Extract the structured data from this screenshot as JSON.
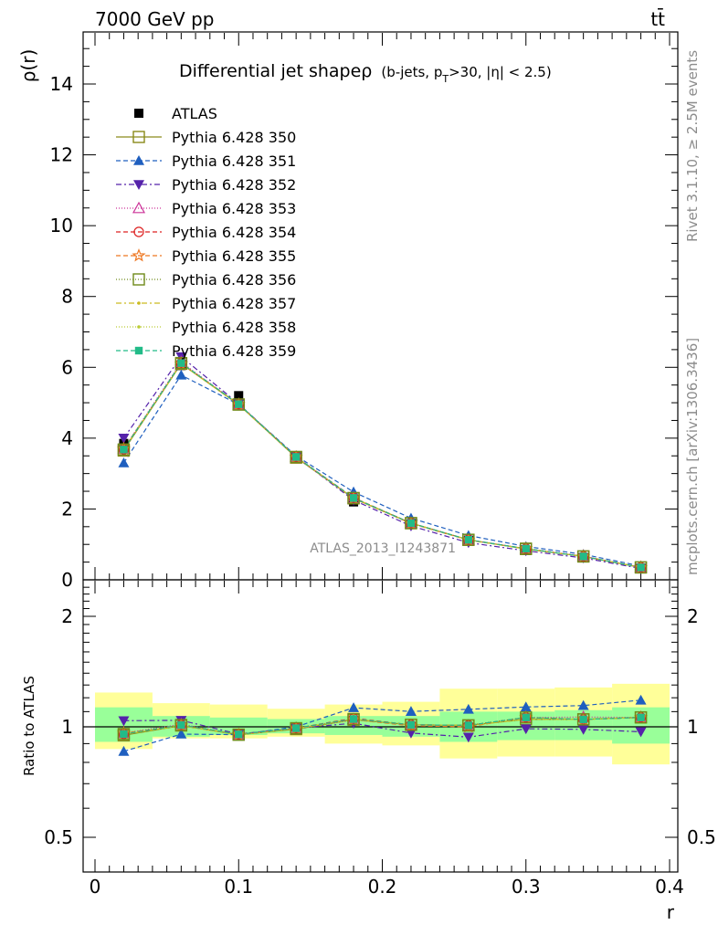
{
  "header": {
    "left": "7000 GeV pp",
    "right": "tt̄"
  },
  "side_texts": {
    "rivet": "Rivet 3.1.10, ≥ 2.5M events",
    "mcplots": "mcplots.cern.ch [arXiv:1306.3436]"
  },
  "main_panel": {
    "title_main": "Differential jet shapeρ",
    "title_sub": "(b-jets, p",
    "title_sub_T": "T",
    "title_sub_rest": ">30, |η| < 2.5)",
    "ylabel": "ρ(r)",
    "watermark": "ATLAS_2013_I1243871",
    "y_ticks": [
      "0",
      "2",
      "4",
      "6",
      "8",
      "10",
      "12",
      "14"
    ]
  },
  "ratio_panel": {
    "ylabel": "Ratio to ATLAS",
    "y_ticks": [
      "0.5",
      "1",
      "2"
    ],
    "x_ticks": [
      "0",
      "0.1",
      "0.2",
      "0.3",
      "0.4"
    ],
    "xlabel": "r"
  },
  "chart_data": {
    "type": "line",
    "x": [
      0.02,
      0.06,
      0.1,
      0.14,
      0.18,
      0.22,
      0.26,
      0.3,
      0.34,
      0.38
    ],
    "bin_edges": [
      0,
      0.04,
      0.08,
      0.12,
      0.16,
      0.2,
      0.24,
      0.28,
      0.32,
      0.36,
      0.4
    ],
    "xlim": [
      -0.01,
      0.405
    ],
    "ylim": [
      0,
      15.5
    ],
    "ratio_ylim": [
      0.4,
      2.5
    ],
    "data": {
      "name": "ATLAS",
      "values": [
        3.85,
        6.05,
        5.2,
        3.5,
        2.2,
        1.58,
        1.12,
        0.83,
        0.63,
        0.33
      ]
    },
    "band_green": [
      [
        0.91,
        1.13
      ],
      [
        0.94,
        1.07
      ],
      [
        0.95,
        1.06
      ],
      [
        0.96,
        1.05
      ],
      [
        0.95,
        1.07
      ],
      [
        0.94,
        1.07
      ],
      [
        0.91,
        1.1
      ],
      [
        0.92,
        1.1
      ],
      [
        0.92,
        1.11
      ],
      [
        0.9,
        1.13
      ]
    ],
    "band_yellow": [
      [
        0.87,
        1.24
      ],
      [
        0.93,
        1.16
      ],
      [
        0.93,
        1.15
      ],
      [
        0.94,
        1.12
      ],
      [
        0.9,
        1.15
      ],
      [
        0.89,
        1.17
      ],
      [
        0.82,
        1.27
      ],
      [
        0.83,
        1.27
      ],
      [
        0.83,
        1.28
      ],
      [
        0.79,
        1.31
      ]
    ],
    "series": [
      {
        "name": "Pythia 6.428 350",
        "color": "#8a8a1a",
        "dash": "",
        "marker": "square-open",
        "values": [
          3.65,
          6.1,
          4.95,
          3.45,
          2.3,
          1.6,
          1.13,
          0.87,
          0.66,
          0.35
        ]
      },
      {
        "name": "Pythia 6.428 351",
        "color": "#1f5fbf",
        "dash": "5,3",
        "marker": "triangle-up",
        "values": [
          3.3,
          5.78,
          4.95,
          3.5,
          2.48,
          1.74,
          1.25,
          0.94,
          0.72,
          0.39
        ]
      },
      {
        "name": "Pythia 6.428 352",
        "color": "#5522aa",
        "dash": "6,3,2,3",
        "marker": "triangle-down",
        "values": [
          4.0,
          6.3,
          4.97,
          3.47,
          2.25,
          1.52,
          1.05,
          0.82,
          0.62,
          0.32
        ]
      },
      {
        "name": "Pythia 6.428 353",
        "color": "#cc3399",
        "dash": "1,2",
        "marker": "triangle-open",
        "values": [
          3.7,
          6.15,
          4.95,
          3.47,
          2.3,
          1.6,
          1.13,
          0.88,
          0.67,
          0.35
        ]
      },
      {
        "name": "Pythia 6.428 354",
        "color": "#dd2222",
        "dash": "5,3",
        "marker": "circle-open",
        "values": [
          3.68,
          6.12,
          4.96,
          3.47,
          2.32,
          1.6,
          1.13,
          0.88,
          0.66,
          0.35
        ]
      },
      {
        "name": "Pythia 6.428 355",
        "color": "#ee7722",
        "dash": "5,3",
        "marker": "star-open",
        "values": [
          3.7,
          6.1,
          4.95,
          3.46,
          2.3,
          1.59,
          1.12,
          0.88,
          0.66,
          0.35
        ]
      },
      {
        "name": "Pythia 6.428 356",
        "color": "#6f8a1a",
        "dash": "1,2",
        "marker": "square-open",
        "values": [
          3.68,
          6.12,
          4.95,
          3.47,
          2.31,
          1.6,
          1.13,
          0.88,
          0.66,
          0.35
        ]
      },
      {
        "name": "Pythia 6.428 357",
        "color": "#ccbb22",
        "dash": "6,3,2,3",
        "marker": "dot",
        "values": [
          3.67,
          6.1,
          4.94,
          3.46,
          2.31,
          1.6,
          1.13,
          0.87,
          0.66,
          0.35
        ]
      },
      {
        "name": "Pythia 6.428 358",
        "color": "#bbcc33",
        "dash": "1,2",
        "marker": "dot",
        "values": [
          3.68,
          6.1,
          4.95,
          3.46,
          2.3,
          1.6,
          1.13,
          0.87,
          0.66,
          0.35
        ]
      },
      {
        "name": "Pythia 6.428 359",
        "color": "#22bb88",
        "dash": "5,3",
        "marker": "square",
        "values": [
          3.68,
          6.12,
          4.96,
          3.47,
          2.31,
          1.6,
          1.13,
          0.88,
          0.66,
          0.35
        ]
      }
    ]
  }
}
